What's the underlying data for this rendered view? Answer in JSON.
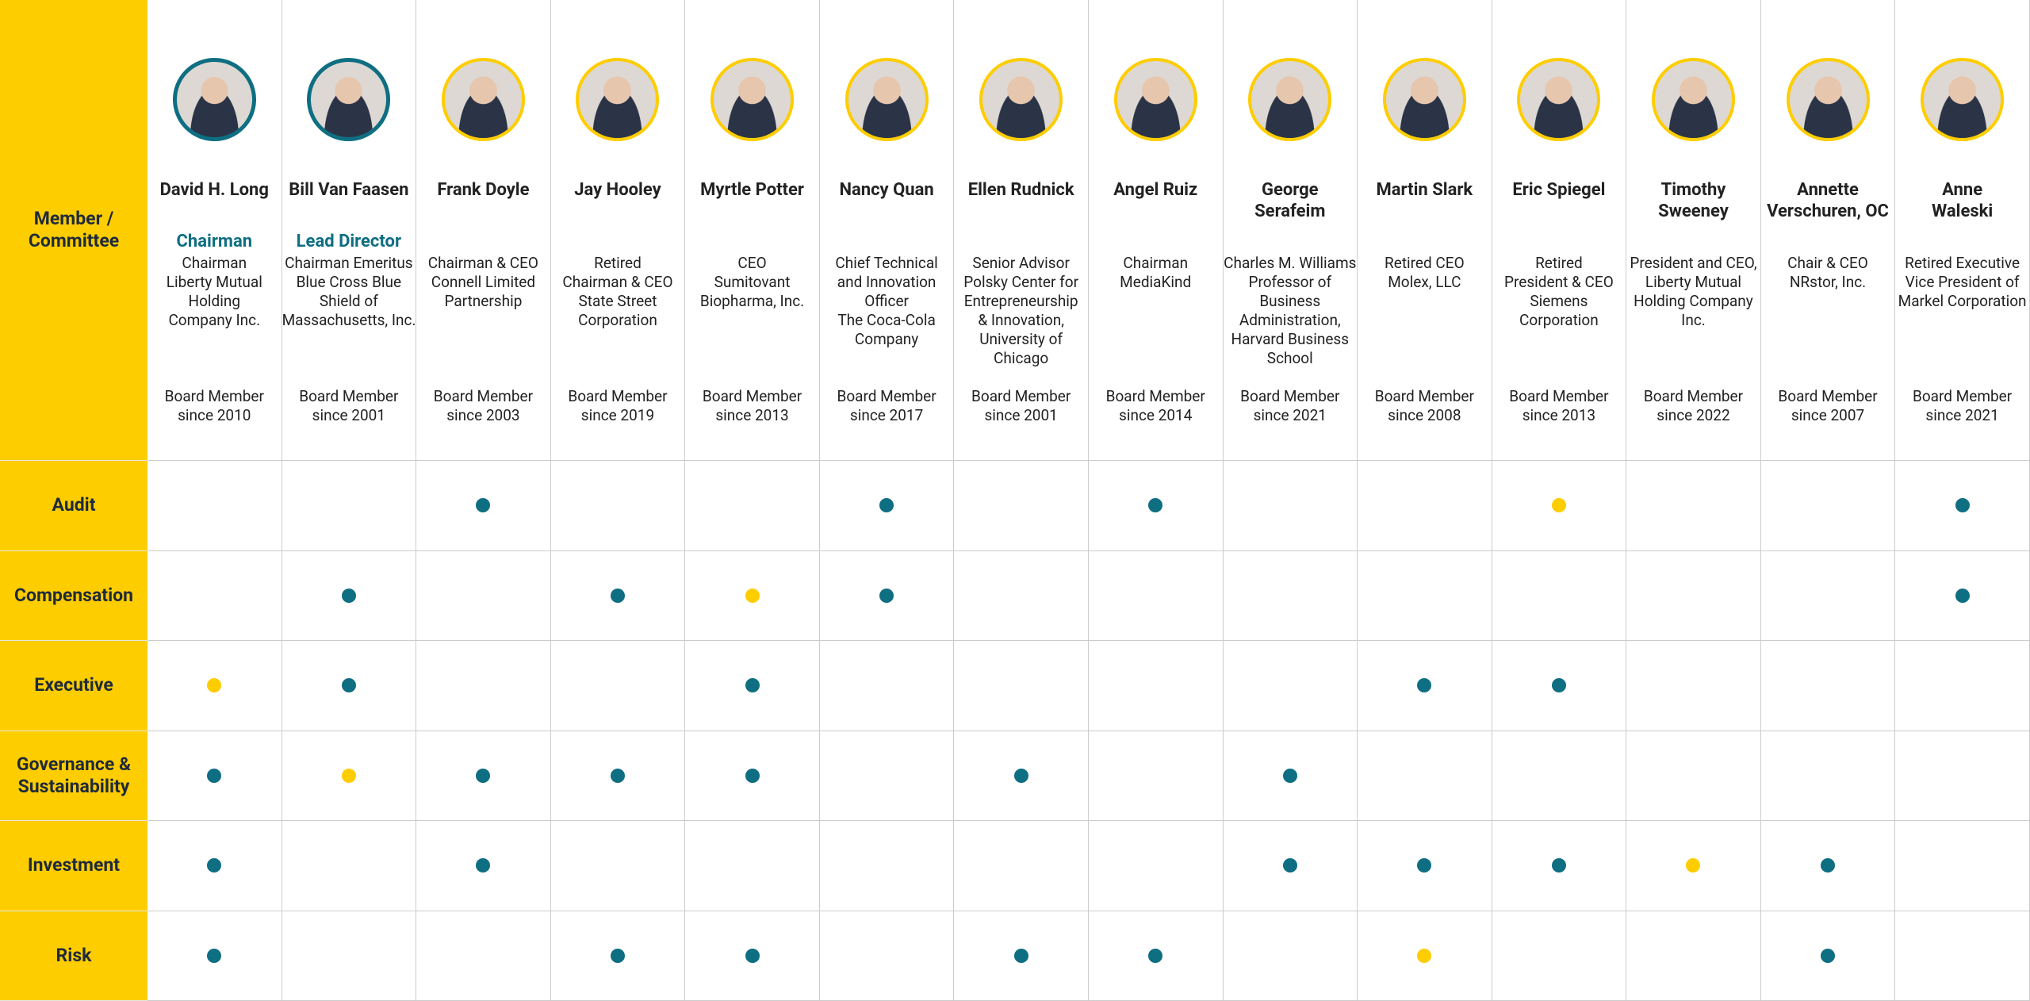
{
  "header": {
    "label": "Member / Committee"
  },
  "members": [
    {
      "name": [
        "David H. Long"
      ],
      "role": "Chairman",
      "title": [
        "Chairman",
        "Liberty Mutual",
        "Holding",
        "Company Inc."
      ],
      "since": [
        "Board Member",
        "since 2010"
      ]
    },
    {
      "name": [
        "Bill Van Faasen"
      ],
      "role": "Lead Director",
      "title": [
        "Chairman Emeritus",
        "Blue Cross Blue",
        "Shield of",
        "Massachusetts, Inc."
      ],
      "since": [
        "Board Member",
        "since 2001"
      ]
    },
    {
      "name": [
        "Frank Doyle"
      ],
      "title": [
        "Chairman & CEO",
        "Connell Limited",
        "Partnership"
      ],
      "since": [
        "Board Member",
        "since 2003"
      ]
    },
    {
      "name": [
        "Jay Hooley"
      ],
      "title": [
        "Retired",
        "Chairman & CEO",
        "State Street",
        "Corporation"
      ],
      "since": [
        "Board Member",
        "since 2019"
      ]
    },
    {
      "name": [
        "Myrtle Potter"
      ],
      "title": [
        "CEO",
        "Sumitovant",
        "Biopharma, Inc."
      ],
      "since": [
        "Board Member",
        "since 2013"
      ]
    },
    {
      "name": [
        "Nancy Quan"
      ],
      "title": [
        "Chief Technical",
        "and Innovation",
        "Officer",
        "The Coca-Cola",
        "Company"
      ],
      "since": [
        "Board Member",
        "since 2017"
      ]
    },
    {
      "name": [
        "Ellen Rudnick"
      ],
      "title": [
        "Senior Advisor",
        "Polsky Center for",
        "Entrepreneurship",
        "& Innovation,",
        "University of",
        "Chicago"
      ],
      "since": [
        "Board Member",
        "since 2001"
      ]
    },
    {
      "name": [
        "Angel Ruiz"
      ],
      "title": [
        "Chairman",
        "MediaKind"
      ],
      "since": [
        "Board Member",
        "since 2014"
      ]
    },
    {
      "name": [
        "George",
        "Serafeim"
      ],
      "title": [
        "Charles M. Williams",
        "Professor of",
        "Business",
        "Administration,",
        "Harvard Business",
        "School"
      ],
      "since": [
        "Board Member",
        "since 2021"
      ]
    },
    {
      "name": [
        "Martin Slark"
      ],
      "title": [
        "Retired CEO",
        "Molex, LLC"
      ],
      "since": [
        "Board Member",
        "since 2008"
      ]
    },
    {
      "name": [
        "Eric Spiegel"
      ],
      "title": [
        "Retired",
        "President & CEO",
        "Siemens",
        "Corporation"
      ],
      "since": [
        "Board Member",
        "since 2013"
      ]
    },
    {
      "name": [
        "Timothy",
        "Sweeney"
      ],
      "title": [
        "President and CEO,",
        "Liberty Mutual",
        "Holding Company",
        "Inc."
      ],
      "since": [
        "Board Member",
        "since 2022"
      ]
    },
    {
      "name": [
        "Annette",
        "Verschuren, OC"
      ],
      "title": [
        "Chair & CEO",
        "NRstor, Inc."
      ],
      "since": [
        "Board Member",
        "since 2007"
      ]
    },
    {
      "name": [
        "Anne",
        "Waleski"
      ],
      "title": [
        "Retired Executive",
        "Vice President of",
        "Markel Corporation"
      ],
      "since": [
        "Board Member",
        "since 2021"
      ]
    }
  ],
  "committees": [
    "Audit",
    "Compensation",
    "Executive",
    "Governance & Sustainability",
    "Investment",
    "Risk"
  ]
}
